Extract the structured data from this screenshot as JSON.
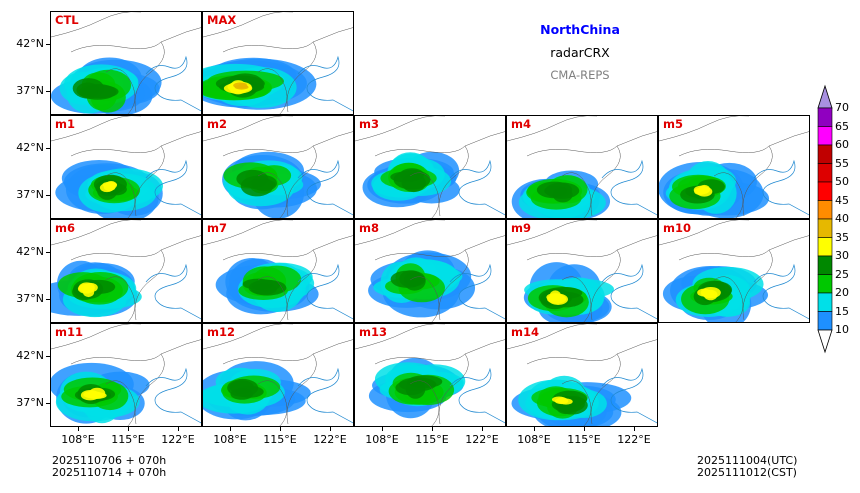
{
  "title": {
    "region": "NorthChina",
    "variable": "radarCRX",
    "model": "CMA-REPS"
  },
  "colors": {
    "region_title": "#0000ff",
    "model_title": "#808080",
    "panel_label": "#e00000"
  },
  "panels": [
    {
      "label": "CTL",
      "row": 0,
      "col": 0
    },
    {
      "label": "MAX",
      "row": 0,
      "col": 1
    },
    {
      "label": "m1",
      "row": 1,
      "col": 0
    },
    {
      "label": "m2",
      "row": 1,
      "col": 1
    },
    {
      "label": "m3",
      "row": 1,
      "col": 2
    },
    {
      "label": "m4",
      "row": 1,
      "col": 3
    },
    {
      "label": "m5",
      "row": 1,
      "col": 4
    },
    {
      "label": "m6",
      "row": 2,
      "col": 0
    },
    {
      "label": "m7",
      "row": 2,
      "col": 1
    },
    {
      "label": "m8",
      "row": 2,
      "col": 2
    },
    {
      "label": "m9",
      "row": 2,
      "col": 3
    },
    {
      "label": "m10",
      "row": 2,
      "col": 4
    },
    {
      "label": "m11",
      "row": 3,
      "col": 0
    },
    {
      "label": "m12",
      "row": 3,
      "col": 1
    },
    {
      "label": "m13",
      "row": 3,
      "col": 2
    },
    {
      "label": "m14",
      "row": 3,
      "col": 3
    }
  ],
  "y_ticks": [
    "42°N",
    "37°N"
  ],
  "x_ticks": [
    "108°E",
    "115°E",
    "122°E"
  ],
  "colorbar": {
    "levels": [
      "10",
      "15",
      "20",
      "25",
      "30",
      "35",
      "40",
      "45",
      "50",
      "55",
      "60",
      "65",
      "70"
    ],
    "colors": [
      "#1e90ff",
      "#00e0e8",
      "#00c800",
      "#008800",
      "#ffff00",
      "#e6b800",
      "#ff8c00",
      "#ff0000",
      "#dd0000",
      "#c00000",
      "#ff00ff",
      "#9000c0"
    ],
    "over_color": "#a890e0",
    "under_color": "#ffffff"
  },
  "footer": {
    "init_line1": "2025110706  +  070h",
    "init_line2": "2025110714  +  070h",
    "valid_utc": "2025111004(UTC)",
    "valid_cst": "2025111012(CST)"
  }
}
